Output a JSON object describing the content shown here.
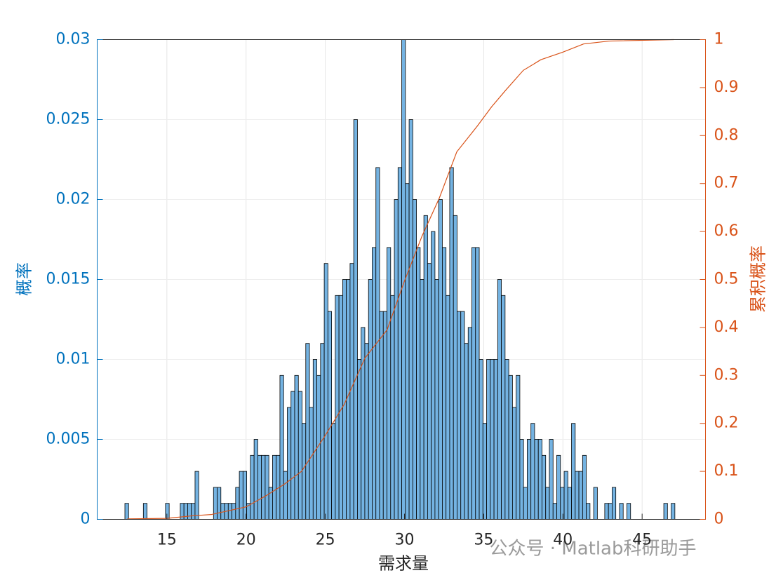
{
  "chart_data": {
    "type": "histogram",
    "xlabel": "需求量",
    "ylabel": "概率",
    "y2label": "累积概率",
    "annotation": "公众号 · Matlab科研助手",
    "color": "#74b3e2",
    "edgecolor": "#000000",
    "ycolor": "#0072bd",
    "y2color": "#d95319",
    "grid": true,
    "bins": [
      12.35,
      12.583,
      12.816,
      13.049,
      13.282,
      13.515,
      13.748,
      13.981,
      14.214,
      14.447,
      14.68,
      14.913,
      15.146,
      15.379,
      15.612,
      15.845,
      16.078,
      16.311,
      16.544,
      16.777,
      17.01,
      17.243,
      17.476,
      17.709,
      17.942,
      18.175,
      18.408,
      18.641,
      18.874,
      19.107,
      19.34,
      19.573,
      19.806,
      20.039,
      20.272,
      20.505,
      20.738,
      20.971,
      21.204,
      21.437,
      21.67,
      21.903,
      22.136,
      22.369,
      22.602,
      22.835,
      23.068,
      23.301,
      23.534,
      23.767,
      24,
      24.233,
      24.466,
      24.699,
      24.932,
      25.165,
      25.398,
      25.631,
      25.864,
      26.097,
      26.33,
      26.563,
      26.796,
      27.029,
      27.262,
      27.495,
      27.728,
      27.961,
      28.194,
      28.427,
      28.66,
      28.893,
      29.126,
      29.359,
      29.592,
      29.825,
      30.058,
      30.291,
      30.524,
      30.757,
      30.99,
      31.223,
      31.456,
      31.689,
      31.922,
      32.155,
      32.388,
      32.621,
      32.854,
      33.087,
      33.32,
      33.553,
      33.786,
      34.019,
      34.252,
      34.485,
      34.718,
      34.951,
      35.184,
      35.417,
      35.65,
      35.883,
      36.116,
      36.349,
      36.582,
      36.815,
      37.048,
      37.281,
      37.514,
      37.747,
      37.98,
      38.213,
      38.446,
      38.679,
      38.912,
      39.145,
      39.378,
      39.611,
      39.844,
      40.077,
      40.31,
      40.543,
      40.776,
      41.009,
      41.242,
      41.475,
      41.708,
      41.941,
      42.174,
      42.407,
      42.64,
      42.873,
      43.106,
      43.339,
      43.572,
      43.805,
      44.038,
      44.271,
      44.504,
      44.737,
      44.97,
      45.203,
      45.436,
      45.669,
      45.902,
      46.135,
      46.368,
      46.601,
      46.834,
      47.067,
      47.3
    ],
    "values": [
      0.001,
      0,
      0,
      0,
      0,
      0.001,
      0,
      0,
      0,
      0,
      0,
      0.001,
      0,
      0,
      0,
      0.001,
      0.001,
      0.001,
      0.001,
      0.003,
      0,
      0,
      0,
      0,
      0.002,
      0.002,
      0.001,
      0.001,
      0.001,
      0.001,
      0.002,
      0.003,
      0.003,
      0.001,
      0.004,
      0.005,
      0.004,
      0.004,
      0.004,
      0.002,
      0.004,
      0.004,
      0.009,
      0.003,
      0.007,
      0.008,
      0.009,
      0.008,
      0.006,
      0.011,
      0.007,
      0.01,
      0.009,
      0.011,
      0.016,
      0.013,
      0.006,
      0.014,
      0.014,
      0.015,
      0.015,
      0.016,
      0.025,
      0.01,
      0.012,
      0.011,
      0.015,
      0.017,
      0.022,
      0.013,
      0.013,
      0.017,
      0.014,
      0.02,
      0.022,
      0.03,
      0.021,
      0.025,
      0.02,
      0.017,
      0.015,
      0.019,
      0.016,
      0.018,
      0.015,
      0.02,
      0.017,
      0.014,
      0.022,
      0.019,
      0.013,
      0.013,
      0.011,
      0.012,
      0.017,
      0.017,
      0.01,
      0.006,
      0.01,
      0.01,
      0.01,
      0.015,
      0.014,
      0.01,
      0.009,
      0.007,
      0.009,
      0.005,
      0.002,
      0.005,
      0.006,
      0.005,
      0.005,
      0.004,
      0.002,
      0.005,
      0.001,
      0.004,
      0.002,
      0.003,
      0.002,
      0.006,
      0.003,
      0.003,
      0.004,
      0.001,
      0,
      0.002,
      0,
      0,
      0.001,
      0.001,
      0.002,
      0,
      0.001,
      0,
      0.001,
      0,
      0,
      0,
      0,
      0,
      0,
      0,
      0,
      0,
      0.001,
      0,
      0.001,
      0
    ],
    "xlim": [
      10.6,
      49
    ],
    "xticks": [
      15,
      20,
      25,
      30,
      35,
      40,
      45
    ],
    "ylim": [
      0,
      0.03
    ],
    "yticks": [
      0,
      0.005,
      0.01,
      0.015,
      0.02,
      0.025,
      0.03
    ],
    "y2lim": [
      0,
      1
    ],
    "y2ticks": [
      0,
      0.1,
      0.2,
      0.3,
      0.4,
      0.5,
      0.6,
      0.7,
      0.8,
      0.9,
      1
    ],
    "line": {
      "type": "line",
      "axis": "y2",
      "color": "#d95319",
      "x": [
        12.5,
        15,
        16.5,
        17.8,
        20,
        21.3,
        22.4,
        23.5,
        25,
        26.2,
        27.5,
        28.9,
        30,
        31.1,
        32.2,
        33.3,
        34.6,
        35.5,
        36.4,
        37.5,
        38.6,
        40,
        41.3,
        42.9,
        47
      ],
      "values": [
        0.001,
        0.002,
        0.007,
        0.01,
        0.026,
        0.05,
        0.073,
        0.1,
        0.175,
        0.24,
        0.336,
        0.395,
        0.497,
        0.59,
        0.67,
        0.766,
        0.82,
        0.86,
        0.895,
        0.936,
        0.958,
        0.974,
        0.991,
        0.997,
        1
      ]
    }
  }
}
